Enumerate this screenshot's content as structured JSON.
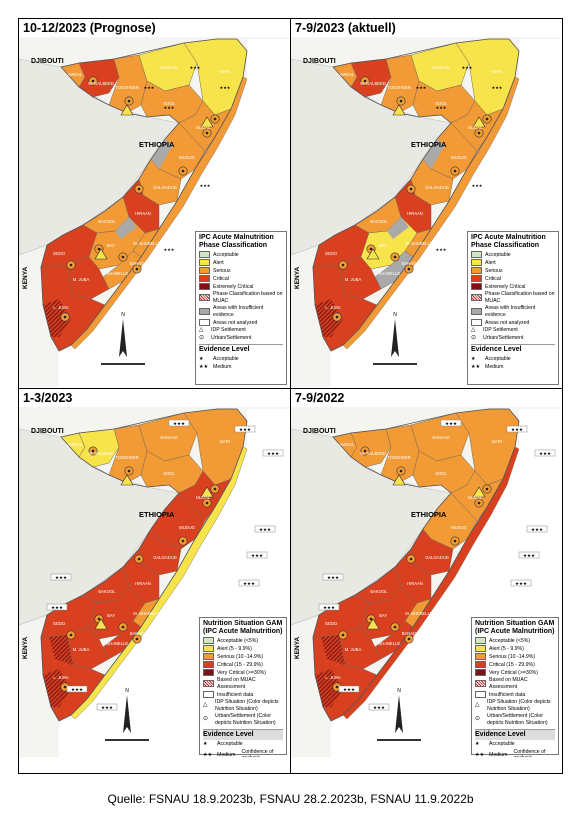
{
  "panels": [
    {
      "title": "10-12/2023 (Prognose)",
      "legend": {
        "title_line1": "IPC Acute Malnutrition",
        "title_line2": "Phase Classification",
        "items": [
          "Acceptable",
          "Alert",
          "Serious",
          "Critical",
          "Extremely Critical",
          "Phase Classification based on MUAC",
          "Areas with Insufficient evidence",
          "Areas not analyzed",
          "IDP Settlement",
          "Urban/Settlement"
        ],
        "colors": [
          "#cfe8c0",
          "#f7e44a",
          "#f29a35",
          "#d8401f",
          "#7a1414"
        ],
        "evidence_title": "Evidence Level",
        "evidence_items": [
          "Acceptable",
          "Medium"
        ]
      }
    },
    {
      "title": "7-9/2023 (aktuell)",
      "legend": {
        "title_line1": "IPC Acute Malnutrition",
        "title_line2": "Phase Classification",
        "items": [
          "Acceptable",
          "Alert",
          "Serious",
          "Critical",
          "Extremely Critical",
          "Phase Classification based on MUAC",
          "Areas with Insufficient evidence",
          "Areas not analyzed",
          "IDP Settlement",
          "Urban/Settlement"
        ],
        "colors": [
          "#cfe8c0",
          "#f7e44a",
          "#f29a35",
          "#d8401f",
          "#7a1414"
        ],
        "evidence_title": "Evidence Level",
        "evidence_items": [
          "Acceptable",
          "Medium"
        ]
      }
    },
    {
      "title": "1-3/2023",
      "legend": {
        "title_line1": "Nutrition Situation GAM",
        "title_line2": "(IPC Acute Malnutrition)",
        "items": [
          "Acceptable (<5%)",
          "Alert (5 - 9.9%)",
          "Serious (10 -14.9%)",
          "Critical (15 - 29.9%)",
          "Very Critical (>=30%)",
          "Based on MUAC Assessment",
          "Insufficient data",
          "IDP Situation (Color depicts Nutrition Situation)",
          "Urban/Settlement (Color depicts Nutrition Situation)"
        ],
        "colors": [
          "#cfe8c0",
          "#f7e44a",
          "#f29a35",
          "#d8401f",
          "#7a1414"
        ],
        "evidence_title": "Evidence Level",
        "evidence_items": [
          "Acceptable",
          "Medium",
          "High"
        ],
        "confidence": "Confidence of analysis"
      }
    },
    {
      "title": "7-9/2022",
      "legend": {
        "title_line1": "Nutrition Situation GAM",
        "title_line2": "(IPC Acute Malnutrition)",
        "items": [
          "Acceptable (<5%)",
          "Alert (5 - 9.9%)",
          "Serious (10 -14.9%)",
          "Critical (15 - 29.9%)",
          "Very Critical (>=30%)",
          "Based on MUAC Assessment",
          "Insufficient data",
          "IDP Situation (Color depicts Nutrition Situation)",
          "Urban/Settlement (Color depicts Nutrition Situation)"
        ],
        "colors": [
          "#cfe8c0",
          "#f7e44a",
          "#f29a35",
          "#d8401f",
          "#7a1414"
        ],
        "evidence_title": "Evidence Level",
        "evidence_items": [
          "Acceptable",
          "Medium",
          "High"
        ],
        "confidence": "Confidence of analysis"
      }
    }
  ],
  "map_labels": {
    "djibouti": "DJIBOUTI",
    "ethiopia": "ETHIOPIA",
    "kenya": "KENYA",
    "north_arrow": "N",
    "regions_a": [
      "AWDAL",
      "W. GALBEED",
      "TOGDHEER",
      "SANAAG",
      "BARI",
      "SOOL",
      "NUGAL",
      "MUDUG",
      "GALGADUD",
      "HIRAAN",
      "BAKOOL",
      "GEDO",
      "BAY",
      "M. SHABELLE",
      "BANADIR",
      "L. SHABELLE",
      "M. JUBA",
      "L. JUBA"
    ],
    "regions_b": [
      "AWDAL",
      "W. GALBEED",
      "TOGDHEER",
      "SANAAG",
      "BARI",
      "SOOL",
      "NUGAL",
      "MUDUG",
      "GALGADUD",
      "HIRAAN",
      "BAKOOL",
      "GEDO",
      "BAY",
      "M. SHABELLE",
      "BANADIR",
      "L. SHABELLE",
      "M. JUBA",
      "L. JUBA"
    ]
  },
  "source": "Quelle: FSNAU 18.9.2023b, FSNAU 28.2.2023b, FSNAU 11.9.2022b"
}
